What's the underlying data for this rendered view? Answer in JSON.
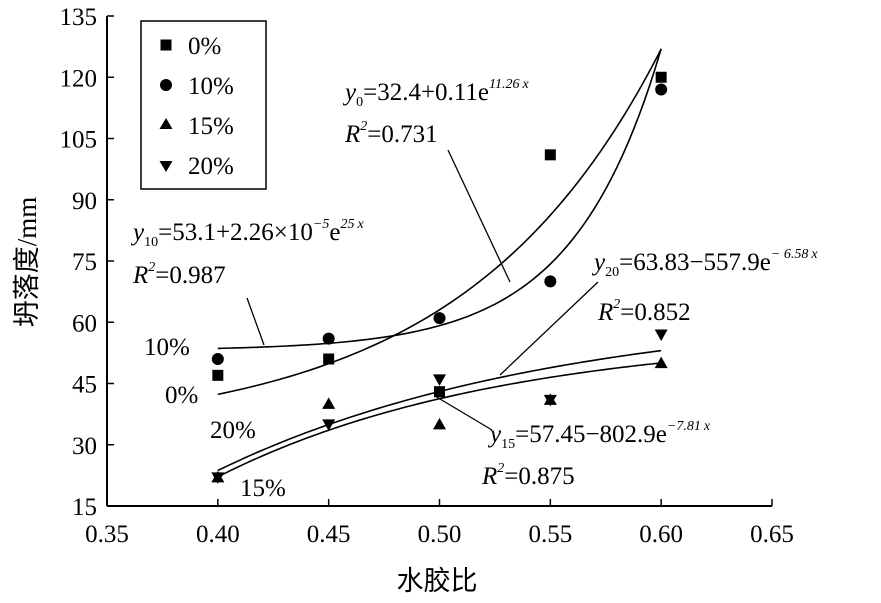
{
  "chart_data": {
    "type": "scatter",
    "xlabel": "水胶比",
    "ylabel": "坍落度/mm",
    "xlim": [
      0.35,
      0.65
    ],
    "ylim": [
      15,
      135
    ],
    "x_ticks": [
      "0.35",
      "0.40",
      "0.45",
      "0.50",
      "0.55",
      "0.60",
      "0.65"
    ],
    "y_ticks": [
      "15",
      "30",
      "45",
      "60",
      "75",
      "90",
      "105",
      "120",
      "135"
    ],
    "grid": false,
    "legend_position": "top-left",
    "series": [
      {
        "name": "0%",
        "marker": "square",
        "x": [
          0.4,
          0.45,
          0.5,
          0.55,
          0.6
        ],
        "y": [
          47,
          51,
          43,
          101,
          120
        ]
      },
      {
        "name": "10%",
        "marker": "circle",
        "x": [
          0.4,
          0.45,
          0.5,
          0.55,
          0.6
        ],
        "y": [
          51,
          56,
          61,
          70,
          117
        ]
      },
      {
        "name": "15%",
        "marker": "triangle-up",
        "x": [
          0.4,
          0.45,
          0.5,
          0.55,
          0.6
        ],
        "y": [
          22,
          40,
          35,
          41,
          50
        ]
      },
      {
        "name": "20%",
        "marker": "triangle-down",
        "x": [
          0.4,
          0.45,
          0.5,
          0.55,
          0.6
        ],
        "y": [
          22,
          35,
          46,
          41,
          57
        ]
      }
    ],
    "fits": [
      {
        "series": "0%",
        "a": 32.4,
        "b": 0.11,
        "k": 11.26,
        "eq_lhs": "y",
        "eq_sub": "0",
        "eq_rhs": "=32.4+0.11e",
        "eq_exp": "11.26",
        "r2_text": "=0.731",
        "curve_label": "0%"
      },
      {
        "series": "10%",
        "a": 53.1,
        "b": 2.26e-05,
        "k": 25,
        "eq_lhs": "y",
        "eq_sub": "10",
        "eq_rhs": "=53.1+2.26×10",
        "eq_pow": "−5",
        "eq_rhs2": "e",
        "eq_exp": "25",
        "r2_text": "=0.987",
        "curve_label": "10%"
      },
      {
        "series": "15%",
        "a": 57.45,
        "b": -802.9,
        "k": -7.81,
        "eq_lhs": "y",
        "eq_sub": "15",
        "eq_rhs": "=57.45−802.9e",
        "eq_exp": "−7.81",
        "r2_text": "=0.875",
        "curve_label": "15%"
      },
      {
        "series": "20%",
        "a": 63.83,
        "b": -557.9,
        "k": -6.58,
        "eq_lhs": "y",
        "eq_sub": "20",
        "eq_rhs": "=63.83−557.9e",
        "eq_exp": "− 6.58",
        "r2_text": "=0.852",
        "curve_label": "20%"
      }
    ],
    "r2_symbol": "R",
    "r2_power": "2",
    "exp_var": "x"
  }
}
